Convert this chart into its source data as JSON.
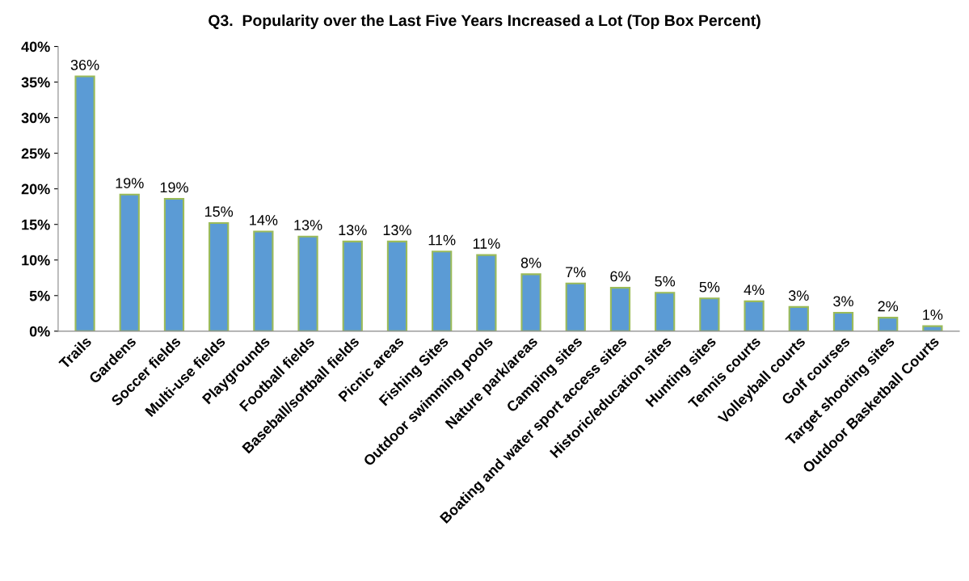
{
  "chart_data": {
    "type": "bar",
    "title": "Q3.  Popularity over the Last Five Years Increased a Lot (Top Box Percent)",
    "categories": [
      "Trails",
      "Gardens",
      "Soccer fields",
      "Multi-use fields",
      "Playgrounds",
      "Football fields",
      "Baseball/softball fields",
      "Picnic areas",
      "Fishing Sites",
      "Outdoor swimming pools",
      "Nature park/areas",
      "Camping sites",
      "Boating and water sport access sites",
      "Historic/education sites",
      "Hunting sites",
      "Tennis courts",
      "Volleyball courts",
      "Golf courses",
      "Target shooting sites",
      "Outdoor Basketball Courts"
    ],
    "values": [
      35.8,
      19.2,
      18.6,
      15.2,
      14.0,
      13.3,
      12.6,
      12.6,
      11.2,
      10.7,
      8.0,
      6.7,
      6.1,
      5.4,
      4.6,
      4.2,
      3.4,
      2.6,
      1.9,
      0.7
    ],
    "value_labels": [
      "36%",
      "19%",
      "19%",
      "15%",
      "14%",
      "13%",
      "13%",
      "13%",
      "11%",
      "11%",
      "8%",
      "7%",
      "6%",
      "5%",
      "5%",
      "4%",
      "3%",
      "3%",
      "2%",
      "1%"
    ],
    "color": "#5b9bd5",
    "ylim": [
      0,
      40
    ],
    "yticks": [
      {
        "value": 0,
        "label": "0%"
      },
      {
        "value": 5,
        "label": "5%"
      },
      {
        "value": 10,
        "label": "10%"
      },
      {
        "value": 15,
        "label": "15%"
      },
      {
        "value": 20,
        "label": "20%"
      },
      {
        "value": 25,
        "label": "25%"
      },
      {
        "value": 30,
        "label": "30%"
      },
      {
        "value": 35,
        "label": "35%"
      },
      {
        "value": 40,
        "label": "40%"
      }
    ],
    "grid": false,
    "legend": false
  }
}
